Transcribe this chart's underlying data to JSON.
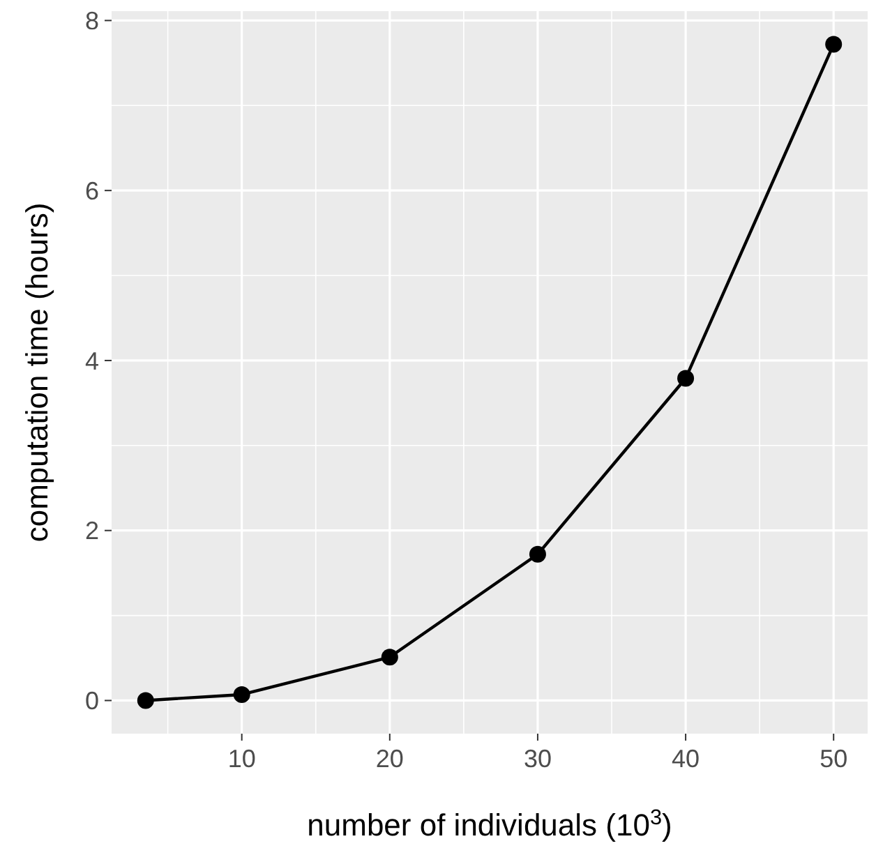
{
  "chart_data": {
    "type": "line",
    "xlabel": "number of individuals (10$^{3}$)",
    "ylabel": "computation time (hours)",
    "x": [
      3.5,
      10,
      20,
      30,
      40,
      50
    ],
    "series": [
      {
        "color": "#000000",
        "values": [
          0.0,
          0.07,
          0.51,
          1.72,
          3.79,
          7.72
        ]
      }
    ],
    "xlim": [
      1.2,
      52.3
    ],
    "xticks": [
      10,
      20,
      30,
      40,
      50
    ],
    "ylim": [
      -0.39,
      8.11
    ],
    "yticks": [
      0,
      2,
      4,
      6,
      8
    ],
    "grid": true,
    "marker": "circle",
    "line_style": "solid"
  }
}
